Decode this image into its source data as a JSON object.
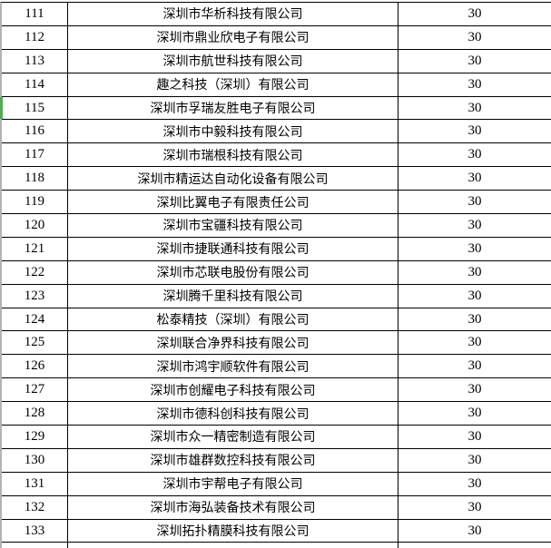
{
  "table": {
    "highlighted_row_index": "115",
    "rows": [
      {
        "index": "111",
        "company": "深圳市华析科技有限公司",
        "value": "30"
      },
      {
        "index": "112",
        "company": "深圳市鼎业欣电子有限公司",
        "value": "30"
      },
      {
        "index": "113",
        "company": "深圳市航世科技有限公司",
        "value": "30"
      },
      {
        "index": "114",
        "company": "趣之科技（深圳）有限公司",
        "value": "30"
      },
      {
        "index": "115",
        "company": "深圳市孚瑞友胜电子有限公司",
        "value": "30"
      },
      {
        "index": "116",
        "company": "深圳市中毅科技有限公司",
        "value": "30"
      },
      {
        "index": "117",
        "company": "深圳市瑞根科技有限公司",
        "value": "30"
      },
      {
        "index": "118",
        "company": "深圳市精运达自动化设备有限公司",
        "value": "30"
      },
      {
        "index": "119",
        "company": "深圳比翼电子有限责任公司",
        "value": "30"
      },
      {
        "index": "120",
        "company": "深圳市宝疆科技有限公司",
        "value": "30"
      },
      {
        "index": "121",
        "company": "深圳市捷联通科技有限公司",
        "value": "30"
      },
      {
        "index": "122",
        "company": "深圳市芯联电股份有限公司",
        "value": "30"
      },
      {
        "index": "123",
        "company": "深圳腾千里科技有限公司",
        "value": "30"
      },
      {
        "index": "124",
        "company": "松泰精技（深圳）有限公司",
        "value": "30"
      },
      {
        "index": "125",
        "company": "深圳联合净界科技有限公司",
        "value": "30"
      },
      {
        "index": "126",
        "company": "深圳市鸿宇顺软件有限公司",
        "value": "30"
      },
      {
        "index": "127",
        "company": "深圳市创耀电子科技有限公司",
        "value": "30"
      },
      {
        "index": "128",
        "company": "深圳市德科创科技有限公司",
        "value": "30"
      },
      {
        "index": "129",
        "company": "深圳市众一精密制造有限公司",
        "value": "30"
      },
      {
        "index": "130",
        "company": "深圳市雄群数控科技有限公司",
        "value": "30"
      },
      {
        "index": "131",
        "company": "深圳市宇帮电子有限公司",
        "value": "30"
      },
      {
        "index": "132",
        "company": "深圳市海弘装备技术有限公司",
        "value": "30"
      },
      {
        "index": "133",
        "company": "深圳拓扑精膜科技有限公司",
        "value": "30"
      }
    ]
  },
  "colors": {
    "grid_line": "#000000",
    "outer_border": "#b3b3b3",
    "highlight_marker": "#4caf50",
    "background": "#ffffff",
    "text": "#000000"
  }
}
